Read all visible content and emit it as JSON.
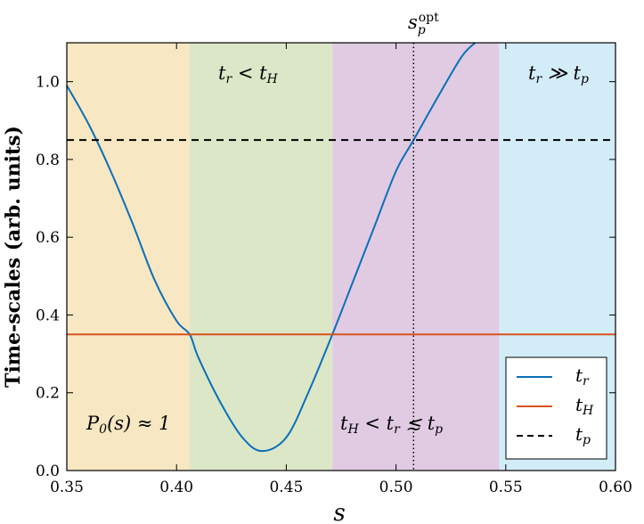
{
  "chart_data": {
    "type": "line",
    "xlabel": "s",
    "ylabel": "Time-scales (arb. units)",
    "xlim": [
      0.35,
      0.6
    ],
    "ylim": [
      0.0,
      1.1
    ],
    "xticks": [
      0.35,
      0.4,
      0.45,
      0.5,
      0.55,
      0.6
    ],
    "xtick_labels": [
      "0.35",
      "0.40",
      "0.45",
      "0.50",
      "0.55",
      "0.60"
    ],
    "yticks": [
      0.0,
      0.2,
      0.4,
      0.6,
      0.8,
      1.0
    ],
    "ytick_labels": [
      "0.0",
      "0.2",
      "0.4",
      "0.6",
      "0.8",
      "1.0"
    ],
    "grid": false,
    "legend_position": "bottom-right",
    "regions": [
      {
        "x0": 0.35,
        "x1": 0.406,
        "color": "#f7e7c2",
        "label": "P0(s) ≈ 1"
      },
      {
        "x0": 0.406,
        "x1": 0.471,
        "color": "#dce7c8",
        "label": "tr < tH"
      },
      {
        "x0": 0.471,
        "x1": 0.547,
        "color": "#e0cbe2",
        "label": "tH < tr ≲ tp"
      },
      {
        "x0": 0.547,
        "x1": 0.6,
        "color": "#d2ecf8",
        "label": "tr ≫ tp"
      }
    ],
    "vline": {
      "x": 0.508,
      "label": "s_p^opt"
    },
    "series": [
      {
        "name": "t_r",
        "color": "#0a6fb9",
        "style": "solid",
        "x": [
          0.35,
          0.36,
          0.37,
          0.38,
          0.39,
          0.4,
          0.406,
          0.41,
          0.42,
          0.43,
          0.439,
          0.45,
          0.46,
          0.471,
          0.48,
          0.49,
          0.5,
          0.508,
          0.52,
          0.53,
          0.536
        ],
        "y": [
          0.99,
          0.89,
          0.77,
          0.635,
          0.49,
          0.385,
          0.35,
          0.29,
          0.175,
          0.085,
          0.05,
          0.085,
          0.2,
          0.35,
          0.48,
          0.625,
          0.77,
          0.85,
          0.97,
          1.065,
          1.1
        ]
      },
      {
        "name": "t_H",
        "color": "#d9531e",
        "style": "solid",
        "x": [
          0.35,
          0.6
        ],
        "y": [
          0.35,
          0.35
        ]
      },
      {
        "name": "t_p",
        "color": "#000000",
        "style": "dashed",
        "x": [
          0.35,
          0.6
        ],
        "y": [
          0.85,
          0.85
        ]
      }
    ]
  }
}
